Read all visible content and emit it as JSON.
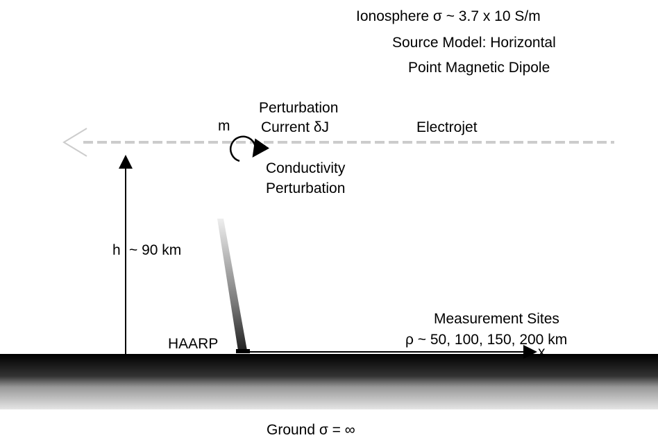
{
  "header": {
    "lines": [
      "Ionosphere σ ~ 3.7 x 10 S/m",
      "Source Model: Horizontal",
      "Point Magnetic Dipole"
    ]
  },
  "labels": {
    "perturbation_current": [
      "Perturbation",
      "Current δJ"
    ],
    "moment": "m",
    "electrojet": "Electrojet",
    "conductivity_perturbation": [
      "Conductivity",
      "Perturbation"
    ],
    "height_symbol": "h",
    "height_value": "~ 90 km",
    "measurement_sites": [
      "Measurement Sites",
      "ρ ~ 50, 100, 150, 200 km"
    ],
    "haarp": "HAARP",
    "x_axis": "x",
    "ground": "Ground σ = ∞"
  }
}
